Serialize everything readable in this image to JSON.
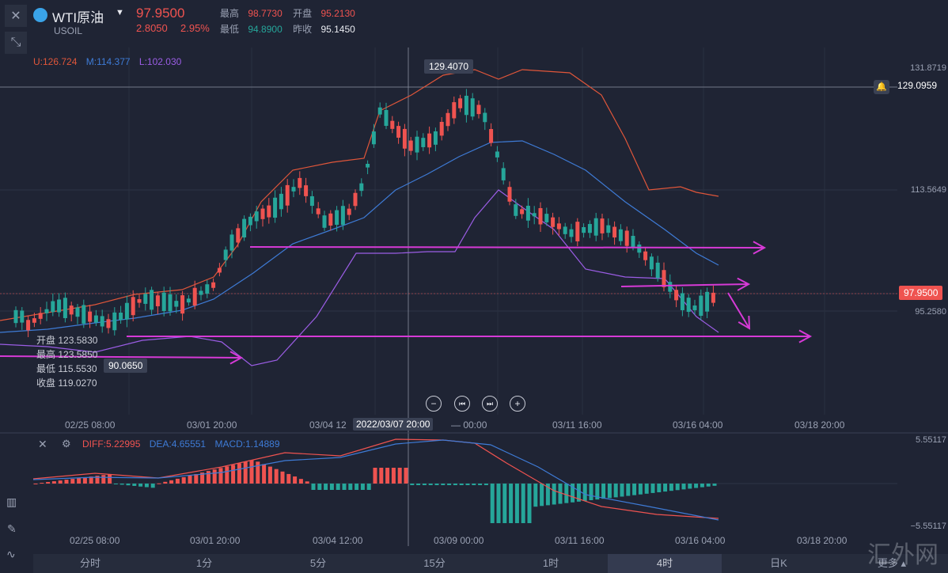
{
  "header": {
    "symbol": "WTI原油",
    "code": "USOIL",
    "price": "97.9500",
    "change": "2.8050",
    "change_pct": "2.95%",
    "high_label": "最高",
    "high_value": "98.7730",
    "open_label": "开盘",
    "open_value": "95.2130",
    "low_label": "最低",
    "low_value": "94.8900",
    "prev_label": "昨收",
    "prev_value": "95.1450"
  },
  "bollinger": {
    "u": "U:126.724",
    "m": "M:114.377",
    "l": "L:102.030"
  },
  "price_axis": {
    "top": "131.8719",
    "crosshair": "129.0959",
    "mid": "113.5649",
    "current": "97.9500",
    "low": "95.2580"
  },
  "tags": {
    "peak": "129.4070",
    "trough": "90.0650"
  },
  "ohlc_tooltip": {
    "open_label": "开盘",
    "open": "123.5830",
    "high_label": "最高",
    "high": "123.5850",
    "low_label": "最低",
    "low": "115.5530",
    "close_label": "收盘",
    "close": "119.0270"
  },
  "time_axis": {
    "t1": "02/25 08:00",
    "t2": "03/01 20:00",
    "t3": "03/04 12",
    "crosshair": "2022/03/07 20:00",
    "t4": "— 00:00",
    "t5": "03/11 16:00",
    "t6": "03/16 04:00",
    "t7": "03/18 20:00"
  },
  "macd": {
    "diff": "DIFF:5.22995",
    "dea": "DEA:4.65551",
    "macd": "MACD:1.14889",
    "axis_top": "5.55117",
    "axis_bottom": "−5.55117"
  },
  "macd_time_axis": {
    "t1": "02/25 08:00",
    "t2": "03/01 20:00",
    "t3": "03/04 12:00",
    "t4": "03/09 00:00",
    "t5": "03/11 16:00",
    "t6": "03/16 04:00",
    "t7": "03/18 20:00"
  },
  "timeframes": [
    "分时",
    "1分",
    "5分",
    "15分",
    "1时",
    "4时",
    "日K",
    "更多"
  ],
  "active_timeframe": "4时",
  "watermark": "汇外网",
  "colors": {
    "up": "#ef5350",
    "down": "#26a69a",
    "annotation": "#d63ad6",
    "upper_band": "#e0563a",
    "mid_band": "#3e7bd6",
    "lower_band": "#9b5de5"
  }
}
